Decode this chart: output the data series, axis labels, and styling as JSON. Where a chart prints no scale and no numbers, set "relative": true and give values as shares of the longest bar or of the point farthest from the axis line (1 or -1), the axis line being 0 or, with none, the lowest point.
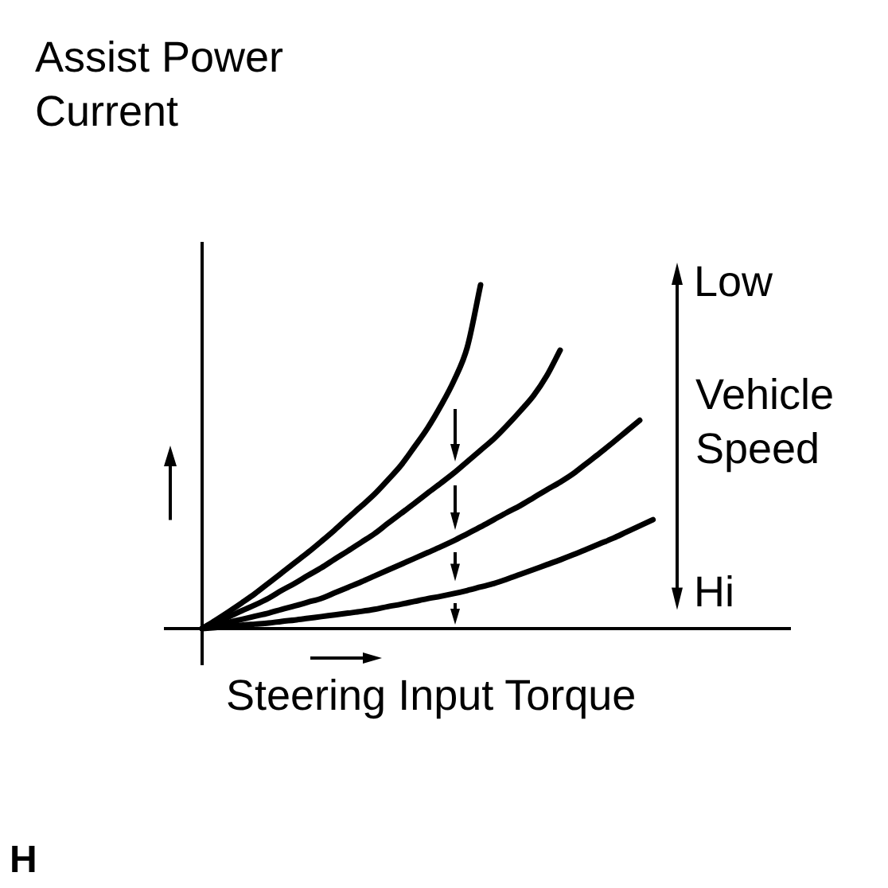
{
  "chart_data": {
    "type": "line",
    "relative": true,
    "marker": "none",
    "xlabel": "Steering Input Torque",
    "ylabel": "Assist Power Current",
    "annotations": [
      "Low",
      "Vehicle Speed",
      "Hi",
      "H"
    ],
    "categories": [
      null,
      null,
      null,
      null,
      null,
      null,
      null,
      null,
      null,
      null,
      null,
      null,
      null,
      null,
      null,
      null,
      null,
      null,
      null,
      null,
      null,
      null,
      null,
      null,
      null,
      null,
      null,
      null,
      null,
      null,
      null,
      null,
      null,
      null,
      null
    ],
    "series": [
      {
        "color": "#000000",
        "values": [
          0,
          0.024,
          0.049,
          0.075,
          0.102,
          0.132,
          0.162,
          0.192,
          0.222,
          0.254,
          0.287,
          0.322,
          0.356,
          0.391,
          0.432,
          0.475,
          0.528,
          0.583,
          0.648,
          0.722,
          0.819,
          1,
          null,
          null,
          null,
          null,
          null,
          null,
          null,
          null,
          null,
          null,
          null,
          null,
          null
        ]
      },
      {
        "color": "#000000",
        "values": [
          0,
          0.017,
          0.034,
          0.052,
          0.069,
          0.088,
          0.111,
          0.132,
          0.155,
          0.177,
          0.202,
          0.226,
          0.251,
          0.276,
          0.306,
          0.335,
          0.364,
          0.394,
          0.423,
          0.453,
          0.486,
          0.519,
          0.552,
          0.591,
          0.633,
          0.678,
          0.736,
          0.81,
          null,
          null,
          null,
          null,
          null,
          null,
          null
        ]
      },
      {
        "color": "#000000",
        "values": [
          0,
          0.009,
          0.018,
          0.027,
          0.036,
          0.045,
          0.056,
          0.066,
          0.077,
          0.088,
          0.104,
          0.12,
          0.136,
          0.153,
          0.17,
          0.187,
          0.204,
          0.221,
          0.238,
          0.256,
          0.276,
          0.296,
          0.317,
          0.338,
          0.358,
          0.381,
          0.404,
          0.426,
          0.451,
          0.481,
          0.511,
          0.542,
          0.574,
          0.606,
          null
        ]
      },
      {
        "color": "#000000",
        "values": [
          0,
          0.003,
          0.006,
          0.01,
          0.013,
          0.016,
          0.021,
          0.025,
          0.03,
          0.035,
          0.04,
          0.045,
          0.05,
          0.056,
          0.064,
          0.071,
          0.079,
          0.087,
          0.094,
          0.102,
          0.111,
          0.121,
          0.131,
          0.144,
          0.158,
          0.172,
          0.186,
          0.2,
          0.215,
          0.231,
          0.247,
          0.263,
          0.281,
          0.299,
          0.317
        ]
      }
    ]
  }
}
